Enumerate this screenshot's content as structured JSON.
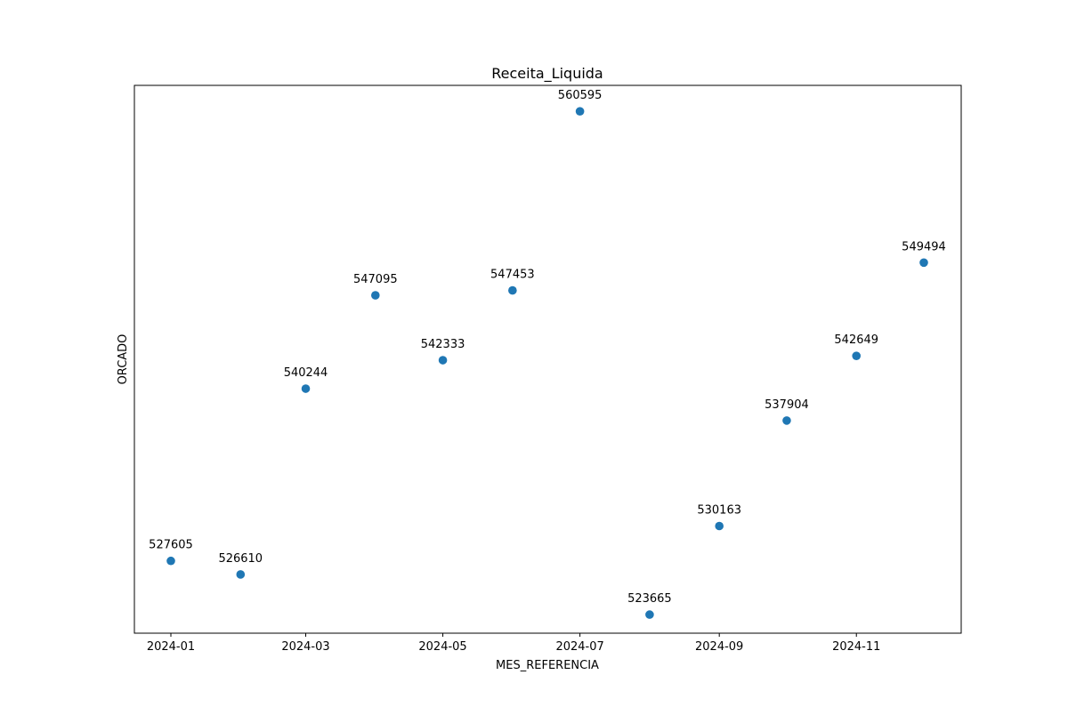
{
  "chart_data": {
    "type": "scatter",
    "title": "Receita_Liquida",
    "xlabel": "MES_REFERENCIA",
    "ylabel": "ORCADO",
    "x_ticks": [
      "2024-01",
      "2024-03",
      "2024-05",
      "2024-07",
      "2024-09",
      "2024-11"
    ],
    "points": [
      {
        "month": "2024-01",
        "value": 527605,
        "label": "527605"
      },
      {
        "month": "2024-02",
        "value": 526610,
        "label": "526610"
      },
      {
        "month": "2024-03",
        "value": 540244,
        "label": "540244"
      },
      {
        "month": "2024-04",
        "value": 547095,
        "label": "547095"
      },
      {
        "month": "2024-05",
        "value": 542333,
        "label": "542333"
      },
      {
        "month": "2024-06",
        "value": 547453,
        "label": "547453"
      },
      {
        "month": "2024-07",
        "value": 560595,
        "label": "560595"
      },
      {
        "month": "2024-08",
        "value": 523665,
        "label": "523665"
      },
      {
        "month": "2024-09",
        "value": 530163,
        "label": "530163"
      },
      {
        "month": "2024-10",
        "value": 537904,
        "label": "537904"
      },
      {
        "month": "2024-11",
        "value": 542649,
        "label": "542649"
      },
      {
        "month": "2024-12",
        "value": 549494,
        "label": "549494"
      }
    ],
    "ylim": [
      522300,
      562500
    ],
    "grid": false,
    "y_ticks_visible": false,
    "marker_color": "#1f77b4"
  }
}
